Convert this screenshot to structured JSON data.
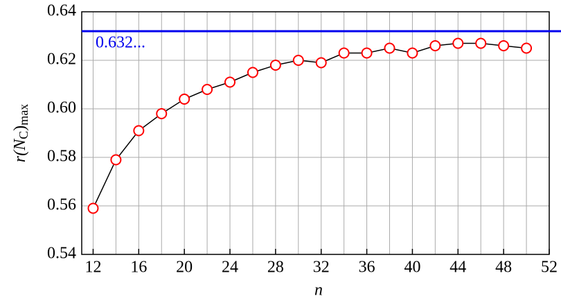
{
  "chart_data": {
    "type": "line",
    "x": [
      12,
      14,
      16,
      18,
      20,
      22,
      24,
      26,
      28,
      30,
      32,
      34,
      36,
      38,
      40,
      42,
      44,
      46,
      48,
      50
    ],
    "series": [
      {
        "color": "#ff0000",
        "line_color": "#000000",
        "values": [
          0.559,
          0.579,
          0.591,
          0.598,
          0.604,
          0.608,
          0.611,
          0.615,
          0.618,
          0.62,
          0.619,
          0.623,
          0.623,
          0.625,
          0.623,
          0.626,
          0.627,
          0.627,
          0.626,
          0.625
        ]
      }
    ],
    "reference_line": {
      "value": 0.632,
      "label": "0.632...",
      "color": "#0000ee"
    },
    "xlabel": "n",
    "ylabel_parts": [
      "r(",
      "N",
      "C",
      ")",
      "max"
    ],
    "xlim": [
      11,
      52
    ],
    "xticks": [
      12,
      16,
      20,
      24,
      28,
      32,
      36,
      40,
      44,
      48,
      52
    ],
    "x_minor_ticks": [
      12,
      14,
      16,
      18,
      20,
      22,
      24,
      26,
      28,
      30,
      32,
      34,
      36,
      38,
      40,
      42,
      44,
      46,
      48,
      50,
      52
    ],
    "ylim": [
      0.54,
      0.64
    ],
    "yticks": [
      {
        "value": 0.54,
        "label": "0.54"
      },
      {
        "value": 0.56,
        "label": "0.56"
      },
      {
        "value": 0.58,
        "label": "0.58"
      },
      {
        "value": 0.6,
        "label": "0.60"
      },
      {
        "value": 0.62,
        "label": "0.62"
      },
      {
        "value": 0.64,
        "label": "0.64"
      }
    ],
    "grid": true
  }
}
